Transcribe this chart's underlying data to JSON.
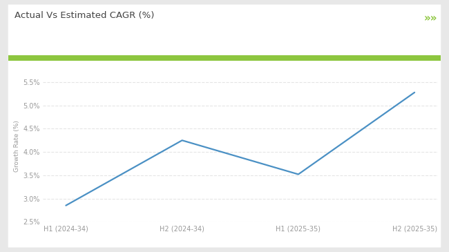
{
  "title": "Actual Vs Estimated CAGR (%)",
  "ylabel": "Growth Rate (%)",
  "categories": [
    "H1 (2024-34)",
    "H2 (2024-34)",
    "H1 (2025-35)",
    "H2 (2025-35)"
  ],
  "values": [
    2.85,
    4.25,
    3.52,
    5.28
  ],
  "ylim": [
    2.5,
    5.75
  ],
  "yticks": [
    2.5,
    3.0,
    3.5,
    4.0,
    4.5,
    5.0,
    5.5
  ],
  "line_color": "#4a90c4",
  "line_width": 1.6,
  "title_fontsize": 9.5,
  "axis_label_fontsize": 6.5,
  "tick_fontsize": 7,
  "outer_bg_color": "#e8e8e8",
  "card_bg_color": "#ffffff",
  "header_line_color": "#8dc63f",
  "title_color": "#444444",
  "tick_color": "#999999",
  "grid_color": "#e5e5e5",
  "chevron_color": "#8dc63f",
  "chevron_text": "»»"
}
